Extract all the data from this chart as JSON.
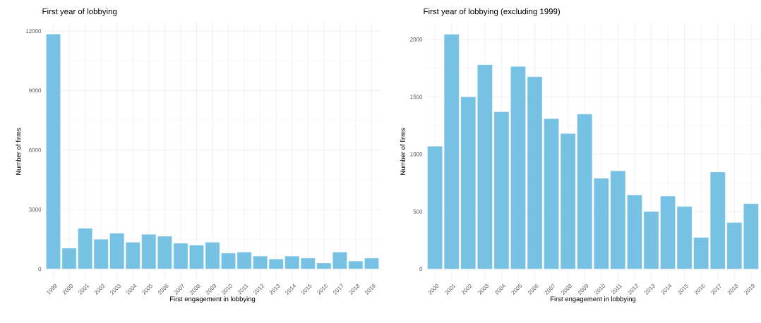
{
  "chart_data": [
    {
      "type": "bar",
      "title": "First year of lobbying",
      "xlabel": "First engagement in lobbying",
      "ylabel": "Number of firms",
      "categories": [
        "1999",
        "2000",
        "2001",
        "2002",
        "2003",
        "2004",
        "2005",
        "2006",
        "2007",
        "2008",
        "2009",
        "2010",
        "2011",
        "2012",
        "2013",
        "2014",
        "2015",
        "2016",
        "2017",
        "2018",
        "2019"
      ],
      "values": [
        11850,
        1050,
        2050,
        1500,
        1800,
        1350,
        1750,
        1650,
        1300,
        1200,
        1350,
        800,
        850,
        650,
        500,
        650,
        550,
        300,
        850,
        400,
        550
      ],
      "color": "#77c1e4",
      "ylim": [
        -592,
        12432
      ],
      "yticks": [
        0,
        3000,
        6000,
        9000,
        12000
      ],
      "grid": true
    },
    {
      "type": "bar",
      "title": "First year of lobbying (excluding 1999)",
      "xlabel": "First engagement in lobbying",
      "ylabel": "Number of firms",
      "categories": [
        "2000",
        "2001",
        "2002",
        "2003",
        "2004",
        "2005",
        "2006",
        "2007",
        "2008",
        "2009",
        "2010",
        "2011",
        "2012",
        "2013",
        "2014",
        "2015",
        "2016",
        "2017",
        "2018",
        "2019"
      ],
      "values": [
        1070,
        2045,
        1500,
        1780,
        1370,
        1765,
        1675,
        1310,
        1180,
        1350,
        790,
        855,
        645,
        500,
        635,
        545,
        275,
        845,
        405,
        570
      ],
      "color": "#77c1e4",
      "ylim": [
        -102,
        2147
      ],
      "yticks": [
        0,
        500,
        1000,
        1500,
        2000
      ],
      "grid": true
    }
  ]
}
